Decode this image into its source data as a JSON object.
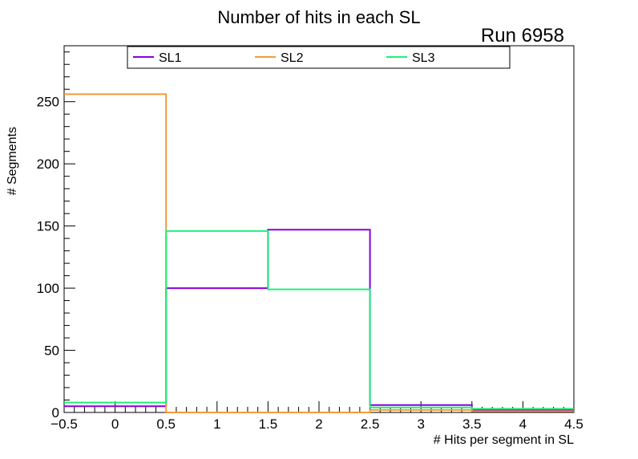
{
  "chart_data": {
    "type": "step-histogram",
    "title": "Number of hits in each SL",
    "run_label": "Run 6958",
    "xlabel": "# Hits per segment in SL",
    "ylabel": "# Segments",
    "xlim": [
      -0.5,
      4.5
    ],
    "ylim": [
      0,
      295
    ],
    "x_ticks": [
      -0.5,
      0,
      0.5,
      1,
      1.5,
      2,
      2.5,
      3,
      3.5,
      4,
      4.5
    ],
    "x_tick_labels": [
      "−0.5",
      "0",
      "0.5",
      "1",
      "1.5",
      "2",
      "2.5",
      "3",
      "3.5",
      "4",
      "4.5"
    ],
    "y_ticks": [
      0,
      50,
      100,
      150,
      200,
      250
    ],
    "y_tick_labels": [
      "0",
      "50",
      "100",
      "150",
      "200",
      "250"
    ],
    "bin_edges": [
      -0.5,
      0.5,
      1.5,
      2.5,
      3.5,
      4.5
    ],
    "series": [
      {
        "name": "SL1",
        "color": "#8a00dc",
        "values": [
          5,
          100,
          147,
          6,
          2
        ]
      },
      {
        "name": "SL2",
        "color": "#f59a3a",
        "values": [
          256,
          0,
          0,
          2,
          1
        ]
      },
      {
        "name": "SL3",
        "color": "#1ef07a",
        "values": [
          8,
          146,
          99,
          4,
          3
        ]
      }
    ],
    "legend_position": "top"
  }
}
